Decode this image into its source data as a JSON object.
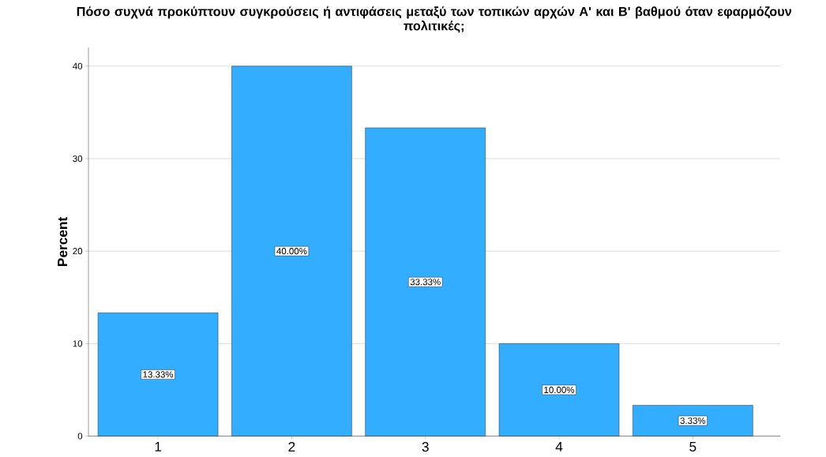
{
  "chart_data": {
    "type": "bar",
    "title": "Πόσο συχνά προκύπτουν συγκρούσεις ή αντιφάσεις μεταξύ των τοπικών αρχών Α' και Β' βαθμού όταν εφαρμόζουν πολιτικές;",
    "ylabel": "Percent",
    "categories": [
      "1",
      "2",
      "3",
      "4",
      "5"
    ],
    "values": [
      13.33,
      40.0,
      33.33,
      10.0,
      3.33
    ],
    "value_labels": [
      "13.33%",
      "40.00%",
      "33.33%",
      "10.00%",
      "3.33%"
    ],
    "color": "#33adff",
    "ylim": [
      0,
      42
    ],
    "yticks": [
      0,
      10,
      20,
      30,
      40
    ],
    "grid": "y"
  }
}
